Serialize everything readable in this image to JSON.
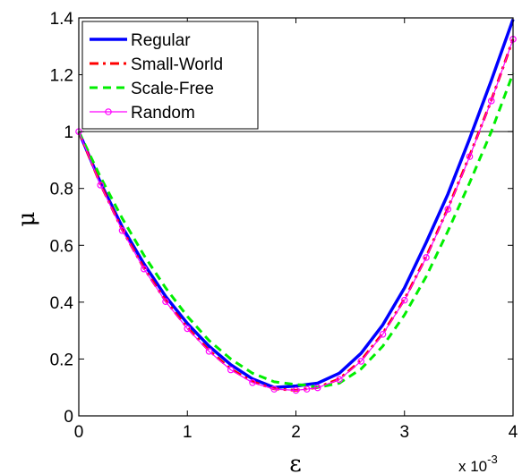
{
  "chart_data": {
    "type": "line",
    "xlabel": "ε",
    "ylabel": "μ",
    "x_multiplier_label": "x 10",
    "x_multiplier_exp": "-3",
    "xlim": [
      0,
      0.004
    ],
    "ylim": [
      0,
      1.4
    ],
    "xticks": [
      0,
      0.001,
      0.002,
      0.003,
      0.004
    ],
    "xtick_labels": [
      "0",
      "1",
      "2",
      "3",
      "4"
    ],
    "yticks": [
      0,
      0.2,
      0.4,
      0.6,
      0.8,
      1,
      1.2,
      1.4
    ],
    "ytick_labels": [
      "0",
      "0.2",
      "0.4",
      "0.6",
      "0.8",
      "1",
      "1.2",
      "1.4"
    ],
    "reference_line": {
      "y": 1
    },
    "grid": false,
    "legend_position": "top-left",
    "x": [
      0,
      0.0002,
      0.0004,
      0.0006,
      0.0008,
      0.001,
      0.0012,
      0.0014,
      0.0016,
      0.0018,
      0.002,
      0.0021,
      0.0022,
      0.0024,
      0.0026,
      0.0028,
      0.003,
      0.0032,
      0.0034,
      0.0036,
      0.0038,
      0.004
    ],
    "series": [
      {
        "name": "Regular",
        "color": "#0000ff",
        "style": "solid",
        "values": [
          1.0,
          0.82,
          0.665,
          0.535,
          0.42,
          0.325,
          0.245,
          0.18,
          0.13,
          0.1,
          0.105,
          0.11,
          0.115,
          0.15,
          0.22,
          0.32,
          0.45,
          0.61,
          0.78,
          0.975,
          1.18,
          1.395
        ]
      },
      {
        "name": "Small-World",
        "color": "#ff0000",
        "style": "dashdot",
        "values": [
          1.0,
          0.815,
          0.655,
          0.52,
          0.405,
          0.31,
          0.23,
          0.165,
          0.12,
          0.095,
          0.09,
          0.095,
          0.1,
          0.13,
          0.195,
          0.29,
          0.41,
          0.56,
          0.73,
          0.915,
          1.11,
          1.325
        ]
      },
      {
        "name": "Scale-Free",
        "color": "#00ee00",
        "style": "dashed",
        "values": [
          1.0,
          0.84,
          0.695,
          0.565,
          0.45,
          0.35,
          0.265,
          0.2,
          0.15,
          0.12,
          0.11,
          0.108,
          0.1,
          0.115,
          0.165,
          0.245,
          0.355,
          0.49,
          0.65,
          0.82,
          1.0,
          1.205
        ]
      },
      {
        "name": "Random",
        "color": "#ff00ff",
        "style": "solid-markers",
        "values": [
          1.0,
          0.812,
          0.652,
          0.517,
          0.402,
          0.307,
          0.227,
          0.162,
          0.117,
          0.094,
          0.09,
          0.094,
          0.099,
          0.128,
          0.192,
          0.287,
          0.407,
          0.557,
          0.727,
          0.912,
          1.108,
          1.325
        ]
      }
    ]
  }
}
